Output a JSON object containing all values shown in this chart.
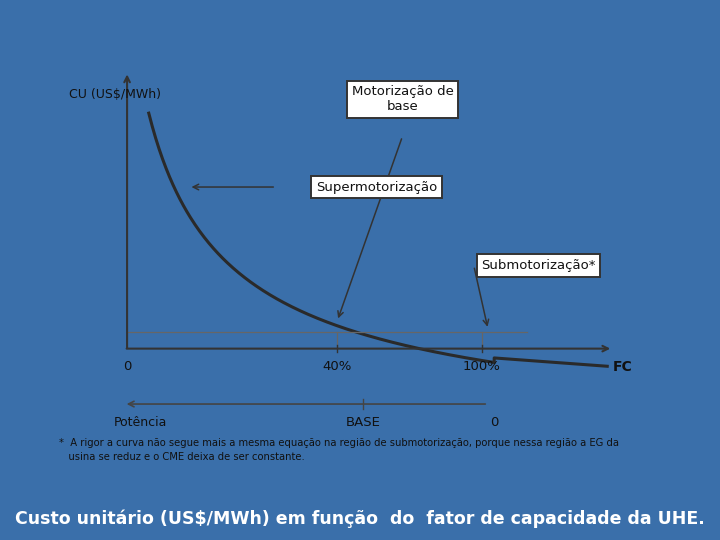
{
  "background_color": "#3a6faa",
  "chart_bg": "#eeeeee",
  "title": "Custo unitário (US$/MWh) em função  do  fator de capacidade da UHE.",
  "title_color": "white",
  "title_fontsize": 13.5,
  "ylabel": "CU (US$/MWh)",
  "xlabel_fc": "FC",
  "xlabel_potencia": "Potência",
  "xlabel_base": "BASE",
  "xlabel_0_right": "0",
  "footnote_line1": "*  A rigor a curva não segue mais a mesma equação na região de submotorização, porque nessa região a EG da",
  "footnote_line2": "   usina se reduz e o CME deixa de ser constante.",
  "label_motorizacao": "Motorização de\nbase",
  "label_supermotorizacao": "Supermotorização",
  "label_submotorizacao": "Submotorização*",
  "curve_color": "#2a2a2a",
  "line_color": "#666666",
  "box_facecolor": "white",
  "box_edgecolor": "#333333",
  "title_bg": "#111111"
}
